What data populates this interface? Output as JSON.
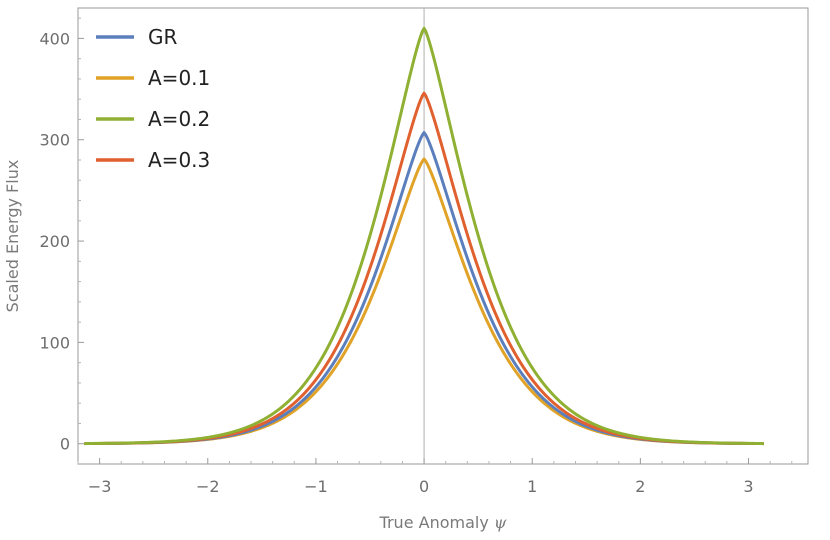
{
  "chart_data": {
    "type": "line",
    "title": "",
    "xlabel": "True Anomaly",
    "xlabel_symbol": "ψ",
    "ylabel": "Scaled Energy Flux",
    "xlim": [
      -3.2,
      3.55
    ],
    "ylim": [
      -20,
      430
    ],
    "x_ticks": [
      -3,
      -2,
      -1,
      0,
      1,
      2,
      3
    ],
    "x_tick_labels": [
      "−3",
      "−2",
      "−1",
      "0",
      "1",
      "2",
      "3"
    ],
    "y_ticks": [
      0,
      100,
      200,
      300,
      400
    ],
    "y_tick_labels": [
      "0",
      "100",
      "200",
      "300",
      "400"
    ],
    "x_range_data": [
      -3.14159,
      3.14159
    ],
    "curve_shape": "peaked flux curve, approx peak*exp(-1.7*|x|^1.3)",
    "reference_line_x": 0,
    "legend_position": "top-left",
    "series": [
      {
        "name": "GR",
        "color": "#5b7fbd",
        "peak": 307
      },
      {
        "name": "A=0.1",
        "color": "#e0a227",
        "peak": 281
      },
      {
        "name": "A=0.2",
        "color": "#8fb032",
        "peak": 410
      },
      {
        "name": "A=0.3",
        "color": "#e0612f",
        "peak": 346
      }
    ],
    "sample_values": {
      "x": [
        -3,
        -2,
        -1,
        -0.5,
        0,
        0.5,
        1,
        2,
        3
      ],
      "GR": [
        1,
        10,
        56,
        157,
        307,
        157,
        56,
        10,
        1
      ],
      "A=0.1": [
        1,
        9,
        51,
        144,
        281,
        144,
        51,
        9,
        1
      ],
      "A=0.2": [
        1,
        14,
        75,
        210,
        410,
        210,
        75,
        14,
        1
      ],
      "A=0.3": [
        1,
        11,
        63,
        177,
        346,
        177,
        63,
        11,
        1
      ]
    }
  }
}
